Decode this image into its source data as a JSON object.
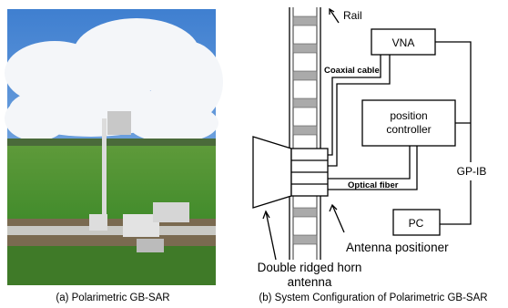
{
  "photo": {
    "caption": "(a) Polarimetric GB-SAR"
  },
  "diagram": {
    "caption": "(b) System Configuration of Polarimetric GB-SAR",
    "rail": "Rail",
    "vna": "VNA",
    "coaxial_cable": "Coaxial cable",
    "position_controller": [
      "position",
      "controller"
    ],
    "gpib": "GP-IB",
    "optical_fiber": "Optical fiber",
    "pc": "PC",
    "antenna_positioner": "Antenna positioner",
    "horn_antenna": [
      "Double ridged horn",
      "antenna"
    ]
  }
}
